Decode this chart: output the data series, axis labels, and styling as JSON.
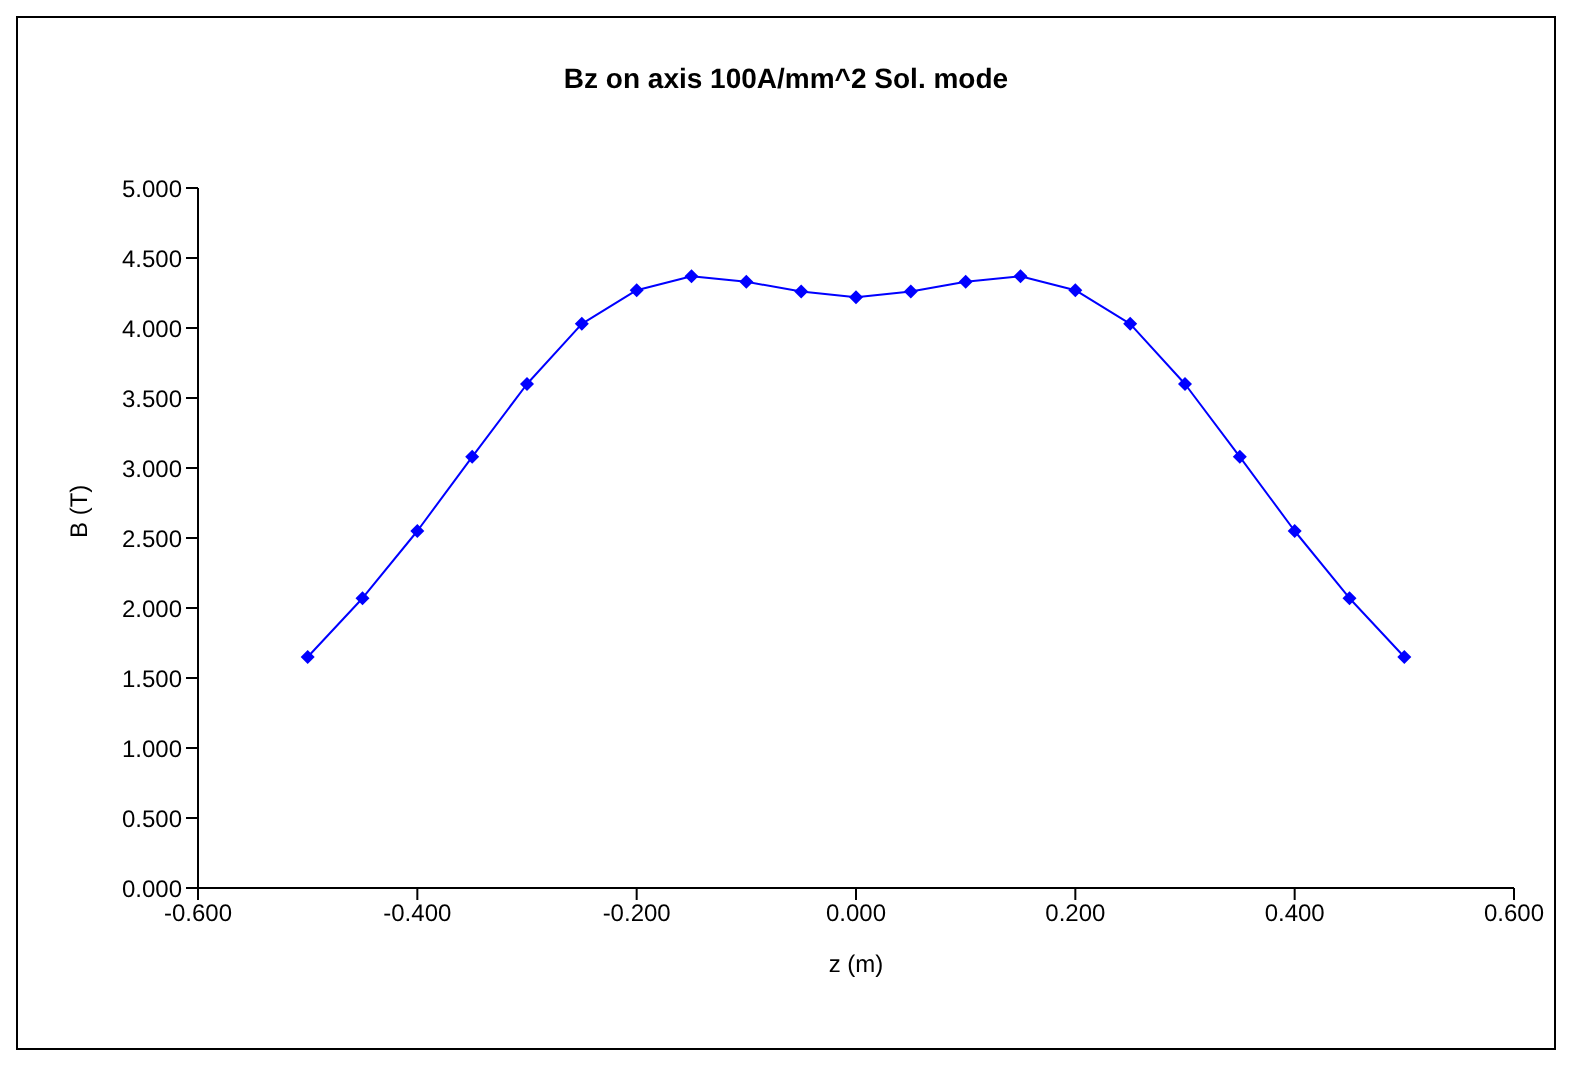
{
  "chart_data": {
    "type": "line",
    "title": "Bz on axis 100A/mm^2 Sol. mode",
    "xlabel": "z (m)",
    "ylabel": "B (T)",
    "x": [
      -0.5,
      -0.45,
      -0.4,
      -0.35,
      -0.3,
      -0.25,
      -0.2,
      -0.15,
      -0.1,
      -0.05,
      0,
      0.05,
      0.1,
      0.15,
      0.2,
      0.25,
      0.3,
      0.35,
      0.4,
      0.45,
      0.5
    ],
    "series": [
      {
        "color": "#0000ff",
        "values": [
          1.65,
          2.07,
          2.55,
          3.08,
          3.6,
          4.03,
          4.27,
          4.37,
          4.33,
          4.26,
          4.22,
          4.26,
          4.33,
          4.37,
          4.27,
          4.03,
          3.6,
          3.08,
          2.55,
          2.07,
          1.65
        ]
      }
    ],
    "xlim": [
      -0.6,
      0.6
    ],
    "xticks": [
      {
        "value": -0.6,
        "label": "-0.600"
      },
      {
        "value": -0.4,
        "label": "-0.400"
      },
      {
        "value": -0.2,
        "label": "-0.200"
      },
      {
        "value": 0,
        "label": "0.000"
      },
      {
        "value": 0.2,
        "label": "0.200"
      },
      {
        "value": 0.4,
        "label": "0.400"
      },
      {
        "value": 0.6,
        "label": "0.600"
      }
    ],
    "ylim": [
      0,
      5
    ],
    "yticks": [
      {
        "value": 0,
        "label": "0.000"
      },
      {
        "value": 0.5,
        "label": "0.500"
      },
      {
        "value": 1,
        "label": "1.000"
      },
      {
        "value": 1.5,
        "label": "1.500"
      },
      {
        "value": 2,
        "label": "2.000"
      },
      {
        "value": 2.5,
        "label": "2.500"
      },
      {
        "value": 3,
        "label": "3.000"
      },
      {
        "value": 3.5,
        "label": "3.500"
      },
      {
        "value": 4,
        "label": "4.000"
      },
      {
        "value": 4.5,
        "label": "4.500"
      },
      {
        "value": 5,
        "label": "5.000"
      }
    ],
    "grid": false,
    "legend": false,
    "marker": "diamond",
    "line_style": "solid"
  }
}
